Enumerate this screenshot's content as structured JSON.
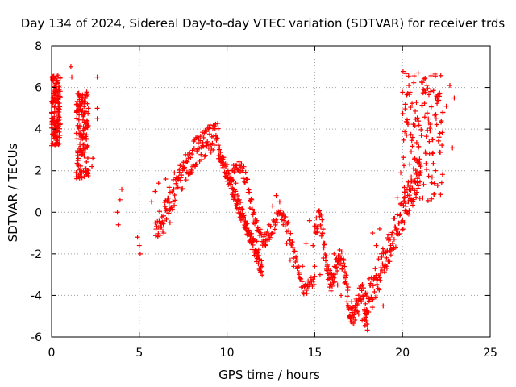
{
  "chart_data": {
    "type": "scatter",
    "title": "Day 134 of 2024, Sidereal Day-to-day VTEC variation (SDTVAR) for receiver trds",
    "xlabel": "GPS time / hours",
    "ylabel": "SDTVAR / TECUs",
    "xlim": [
      0,
      25
    ],
    "ylim": [
      -6,
      8
    ],
    "xticks": [
      0,
      5,
      10,
      15,
      20,
      25
    ],
    "yticks": [
      -6,
      -4,
      -2,
      0,
      2,
      4,
      6,
      8
    ],
    "xtick_labels": [
      "0",
      "5",
      "10",
      "15",
      "20",
      "25"
    ],
    "ytick_labels": [
      "-6",
      "-4",
      "-2",
      "0",
      "2",
      "4",
      "6",
      "8"
    ],
    "grid": true,
    "marker": "+",
    "color": "#ff0000",
    "series": [
      {
        "name": "trds",
        "anchors": [
          [
            0.0,
            4.8
          ],
          [
            0.05,
            5.5
          ],
          [
            0.1,
            6.3
          ],
          [
            0.15,
            4.6
          ],
          [
            0.2,
            5.8
          ],
          [
            0.25,
            3.6
          ],
          [
            0.3,
            6.2
          ],
          [
            0.35,
            4.2
          ],
          [
            0.4,
            5.0
          ],
          [
            0.45,
            3.3
          ],
          [
            1.1,
            7.0
          ],
          [
            1.15,
            6.5
          ],
          [
            1.45,
            5.2
          ],
          [
            1.5,
            4.1
          ],
          [
            1.5,
            2.3
          ],
          [
            1.55,
            1.8
          ],
          [
            1.6,
            3.7
          ],
          [
            1.7,
            3.0
          ],
          [
            1.8,
            4.6
          ],
          [
            1.9,
            4.0
          ],
          [
            1.95,
            5.6
          ],
          [
            2.05,
            3.2
          ],
          [
            2.3,
            2.2
          ],
          [
            2.35,
            2.6
          ],
          [
            2.6,
            6.5
          ],
          [
            2.6,
            5.0
          ],
          [
            2.6,
            4.5
          ],
          [
            3.75,
            0.0
          ],
          [
            3.8,
            -0.6
          ],
          [
            3.9,
            0.6
          ],
          [
            4.0,
            1.1
          ],
          [
            4.9,
            -1.2
          ],
          [
            5.0,
            -1.6
          ],
          [
            5.05,
            -2.0
          ],
          [
            5.7,
            0.5
          ],
          [
            5.9,
            1.0
          ],
          [
            6.1,
            1.4
          ],
          [
            6.3,
            -0.5
          ],
          [
            6.4,
            -1.0
          ],
          [
            6.5,
            0.1
          ],
          [
            6.5,
            1.6
          ],
          [
            6.6,
            0.6
          ],
          [
            6.7,
            1.2
          ],
          [
            6.75,
            -0.5
          ],
          [
            7.0,
            1.9
          ],
          [
            7.2,
            1.2
          ],
          [
            7.5,
            2.2
          ],
          [
            7.8,
            2.6
          ],
          [
            8.0,
            2.8
          ],
          [
            8.3,
            3.0
          ],
          [
            8.6,
            3.2
          ],
          [
            8.9,
            3.3
          ],
          [
            9.2,
            3.0
          ],
          [
            9.6,
            2.7
          ],
          [
            10.0,
            2.3
          ],
          [
            10.3,
            2.0
          ],
          [
            10.5,
            1.4
          ],
          [
            10.7,
            0.6
          ],
          [
            10.9,
            -0.2
          ],
          [
            11.1,
            -0.8
          ],
          [
            11.3,
            0.2
          ],
          [
            11.5,
            -0.5
          ],
          [
            11.7,
            -1.4
          ],
          [
            11.8,
            -1.8
          ],
          [
            12.0,
            -2.6
          ],
          [
            12.2,
            -1.6
          ],
          [
            12.4,
            -0.6
          ],
          [
            12.6,
            0.3
          ],
          [
            12.8,
            0.8
          ],
          [
            13.0,
            0.5
          ],
          [
            13.2,
            -0.6
          ],
          [
            13.4,
            -1.5
          ],
          [
            13.6,
            -2.3
          ],
          [
            13.8,
            -2.6
          ],
          [
            14.1,
            -2.9
          ],
          [
            14.3,
            -2.6
          ],
          [
            14.5,
            -1.5
          ],
          [
            14.7,
            -0.4
          ],
          [
            14.9,
            -1.6
          ],
          [
            15.0,
            -2.6
          ],
          [
            15.3,
            -3.0
          ],
          [
            15.5,
            -2.2
          ],
          [
            15.7,
            -2.6
          ],
          [
            15.9,
            -3.0
          ],
          [
            16.1,
            -2.0
          ],
          [
            16.3,
            -3.5
          ],
          [
            16.5,
            -4.0
          ],
          [
            16.7,
            -3.4
          ],
          [
            16.9,
            -3.6
          ],
          [
            17.1,
            -4.3
          ],
          [
            17.3,
            -4.6
          ],
          [
            17.5,
            -4.9
          ],
          [
            17.7,
            -5.2
          ],
          [
            17.9,
            -3.9
          ],
          [
            18.1,
            -3.2
          ],
          [
            18.3,
            -1.0
          ],
          [
            18.5,
            -1.6
          ],
          [
            18.7,
            -0.8
          ],
          [
            18.9,
            -4.5
          ],
          [
            19.1,
            -2.6
          ],
          [
            19.3,
            -1.3
          ],
          [
            19.5,
            -0.3
          ],
          [
            19.7,
            0.7
          ],
          [
            19.9,
            1.9
          ],
          [
            20.1,
            1.2
          ],
          [
            20.3,
            0.8
          ],
          [
            20.5,
            1.7
          ],
          [
            20.7,
            2.6
          ],
          [
            20.9,
            3.1
          ],
          [
            21.1,
            3.7
          ],
          [
            21.3,
            2.9
          ],
          [
            21.5,
            4.3
          ],
          [
            21.7,
            3.5
          ],
          [
            21.9,
            4.7
          ],
          [
            22.1,
            2.9
          ],
          [
            22.3,
            4.8
          ],
          [
            22.5,
            5.1
          ],
          [
            22.7,
            6.1
          ],
          [
            22.85,
            3.1
          ],
          [
            22.95,
            5.5
          ]
        ],
        "dense_tracks": [
          {
            "x": [
              0.0,
              0.5
            ],
            "y": [
              3.2,
              6.6
            ],
            "style": "cluster"
          },
          {
            "x": [
              1.4,
              2.1
            ],
            "y": [
              1.6,
              5.8
            ],
            "style": "cluster"
          },
          {
            "x": [
              5.9,
              9.5
            ],
            "y": [
              -1.2,
              3.6
            ],
            "style": "rising-arc"
          },
          {
            "x": [
              9.5,
              12.0
            ],
            "y": [
              3.0,
              -2.8
            ],
            "style": "descending"
          },
          {
            "x": [
              10.2,
              15.0
            ],
            "y": [
              1.6,
              -3.1
            ],
            "style": "waves"
          },
          {
            "x": [
              15.0,
              18.0
            ],
            "y": [
              -1.0,
              -5.3
            ],
            "style": "trough"
          },
          {
            "x": [
              17.8,
              21.0
            ],
            "y": [
              -4.8,
              2.0
            ],
            "style": "rising"
          },
          {
            "x": [
              20.0,
              22.3
            ],
            "y": [
              0.5,
              6.8
            ],
            "style": "cluster"
          }
        ]
      }
    ]
  }
}
